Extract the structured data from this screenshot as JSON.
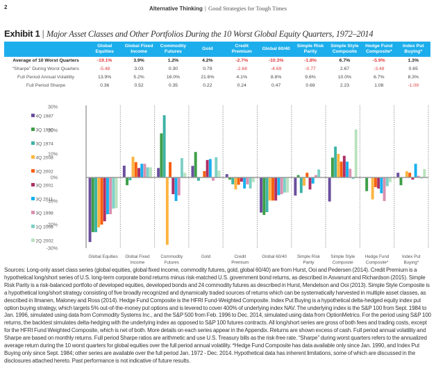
{
  "header": {
    "page_number": "2",
    "publication": "Alternative Thinking",
    "separator": "|",
    "subtitle": "Good Strategies for Tough Times"
  },
  "exhibit": {
    "label": "Exhibit 1",
    "separator": "|",
    "title": "Major Asset Classes and Other Portfolios During the 10 Worst Global Equity Quarters, 1972–2014"
  },
  "table": {
    "header_color": "#1CAEEC",
    "negative_color": "#E0393E",
    "columns": [
      {
        "lines": [
          "Global",
          "Equities"
        ]
      },
      {
        "lines": [
          "Global Fixed",
          "Income"
        ]
      },
      {
        "lines": [
          "Commodity",
          "Futures"
        ]
      },
      {
        "lines": [
          "Gold"
        ]
      },
      {
        "lines": [
          "Credit",
          "Premium"
        ]
      },
      {
        "lines": [
          "Global 60/40"
        ]
      },
      {
        "lines": [
          "Simple Risk",
          "Parity"
        ]
      },
      {
        "lines": [
          "Simple Style",
          "Composite"
        ]
      },
      {
        "lines": [
          "Hedge Fund",
          "Composite*"
        ]
      },
      {
        "lines": [
          "Index Put",
          "Buying*"
        ]
      }
    ],
    "rows": [
      {
        "label": "Average of 10 Worst Quarters",
        "values": [
          "-19.1%",
          "3.9%",
          "1.2%",
          "4.2%",
          "-2.7%",
          "-10.3%",
          "-1.8%",
          "6.7%",
          "-5.9%",
          "1.3%"
        ]
      },
      {
        "label": "“Sharpe” During Worst Quarters",
        "values": [
          "-5.48",
          "3.03",
          "0.30",
          "0.79",
          "-2.68",
          "-4.69",
          "-0.77",
          "2.67",
          "-3.48",
          "0.65"
        ]
      },
      {
        "label": "Full Period Annual Volatility",
        "values": [
          "13.9%",
          "5.2%",
          "16.0%",
          "21.6%",
          "4.1%",
          "8.8%",
          "9.6%",
          "10.0%",
          "6.7%",
          "8.3%"
        ]
      },
      {
        "label": "Full Period Sharpe",
        "values": [
          "0.36",
          "0.52",
          "0.35",
          "0.22",
          "0.24",
          "0.47",
          "0.69",
          "2.23",
          "1.08",
          "-1.09"
        ]
      }
    ]
  },
  "chart_data": {
    "type": "bar",
    "title": "",
    "xlabel": "",
    "ylabel": "",
    "ylim": [
      -30,
      30
    ],
    "yticks": [
      30,
      20,
      10,
      0,
      -10,
      -20,
      -30
    ],
    "ytick_labels": [
      "30%",
      "20%",
      "10%",
      "0%",
      "-10%",
      "-20%",
      "-30%"
    ],
    "grid": false,
    "legend_position": "left",
    "categories": [
      "Global Equities",
      "Global Fixed Income",
      "Commodity Futures",
      "Gold",
      "Credit Premium",
      "Global 60/40",
      "Simple Risk Parity",
      "Simple Style Composite",
      "Hedge Fund Composite*",
      "Index Put Buying*"
    ],
    "category_label_lines": [
      [
        "Global Equities"
      ],
      [
        "Global Fixed",
        "Income"
      ],
      [
        "Commodity",
        "Futures"
      ],
      [
        "Gold"
      ],
      [
        "Credit",
        "Premium"
      ],
      [
        "Global 60/40"
      ],
      [
        "Simple Risk",
        "Parity"
      ],
      [
        "Simple Style",
        "Composite"
      ],
      [
        "Hedge Fund",
        "Composite*"
      ],
      [
        "Index Put",
        "Buying*"
      ]
    ],
    "series": [
      {
        "name": "4Q 1987",
        "color": "#6A4E9E",
        "values": [
          -27.4,
          5.0,
          4.0,
          4.9,
          1.4,
          -14.9,
          -7.7,
          -10.2,
          null,
          2.0
        ]
      },
      {
        "name": "3Q 1990",
        "color": "#3E9E48",
        "values": [
          -23.2,
          -3.3,
          18.7,
          10.8,
          -0.9,
          -15.9,
          1.0,
          8.4,
          -5.8,
          -3.3
        ]
      },
      {
        "name": "3Q 1974",
        "color": "#3DB3A5",
        "values": [
          -23.2,
          -1.2,
          26.4,
          -1.4,
          -2.9,
          -14.7,
          -6.6,
          13.1,
          null,
          null
        ]
      },
      {
        "name": "4Q 2008",
        "color": "#FDB441",
        "values": [
          -21.2,
          8.8,
          -28.6,
          0.0,
          -5.1,
          -9.8,
          -3.5,
          10.0,
          -9.3,
          2.6
        ]
      },
      {
        "name": "3Q 2002",
        "color": "#F7600F",
        "values": [
          -20.0,
          6.5,
          6.5,
          2.7,
          -3.1,
          -9.8,
          2.0,
          6.7,
          -4.1,
          2.0
        ]
      },
      {
        "name": "3Q 2001",
        "color": "#AE2F66",
        "values": [
          -18.6,
          4.0,
          -7.1,
          7.4,
          -1.8,
          -9.8,
          -5.1,
          9.2,
          -4.7,
          -0.9
        ]
      },
      {
        "name": "3Q 2011",
        "color": "#17B0EE",
        "values": [
          -15.6,
          5.8,
          -10.0,
          7.8,
          -4.7,
          -7.5,
          -2.6,
          6.7,
          -6.7,
          5.8
        ]
      },
      {
        "name": "3Q 1998",
        "color": "#D990AE",
        "values": [
          -15.6,
          5.8,
          -7.6,
          -1.4,
          -2.9,
          -7.1,
          1.0,
          3.7,
          -10.0,
          0.7
        ]
      },
      {
        "name": "1Q 2008",
        "color": "#7ED0C6",
        "values": [
          -13.2,
          4.3,
          8.2,
          8.6,
          -4.7,
          -6.4,
          3.4,
          -0.7,
          -3.7,
          -0.4
        ]
      },
      {
        "name": "2Q 2002",
        "color": "#BAE2BF",
        "values": [
          -13.0,
          4.3,
          2.0,
          2.9,
          -2.0,
          -6.4,
          0.0,
          20.4,
          -2.0,
          3.5
        ]
      }
    ]
  },
  "footnote": "Sources: Long-only asset class series (global equities, global fixed income, commodity futures, gold, global 60/40) are from Hurst, Ooi and Pedersen (2014). Credit Premium is a hypothetical long/short series of U.S. long-term corporate bond returns minus risk-matched U.S. government bond returns, as described in Asvanunt and Richardson (2015). Simple Risk Parity is a risk-balanced portfolio of developed equities, developed bonds and 24 commodity futures as described in Hurst, Mendelson and Ooi (2013). Simple Style Composite is a hypothetical long/short strategy consisting of five broadly recognized and dynamically traded sources of returns which can be systematically harvested in multiple asset classes, as described in Ilmanen, Maloney and Ross (2014). Hedge Fund Composite is the HFRI Fund-Weighted Composite. Index Put Buying is a hypothetical delta-hedged equity index put option buying strategy, which targets 5% out-of-the-money put options and is levered to cover 400% of underlying index NAV. The underlying index is the S&P 100 from Sept. 1984 to Jan. 1996, simulated using data from Commodity Systems Inc., and the S&P 500 from Feb. 1996 to Dec. 2014, simulated using data from OptionMetrics.  For the period using S&P 100 returns, the backtest simulates delta-hedging with the underlying index as opposed to S&P 100 futures contracts. All long/short series are gross of both fees and trading costs, except for the HFRI Fund Weighted Composite, which is net of both. More details on each series appear in the Appendix. Returns are shown excess of cash. Full period annual volatility and Sharpe are based on monthly returns. Full period Sharpe ratios are arithmetic and use U.S. Treasury bills as the risk-free rate. “Sharpe” during worst quarters refers to the annualized average return during the 10 worst quarters for global equities over the full period annual volatility. *Hedge Fund Composite has data available only since Jan. 1990, and Index Put Buying only since Sept. 1984; other series are available over the full period Jan. 1972 - Dec. 2014.  Hypothetical data has inherent limitations, some of which are discussed in the disclosures attached hereto. Past performance is not indicative of future results."
}
